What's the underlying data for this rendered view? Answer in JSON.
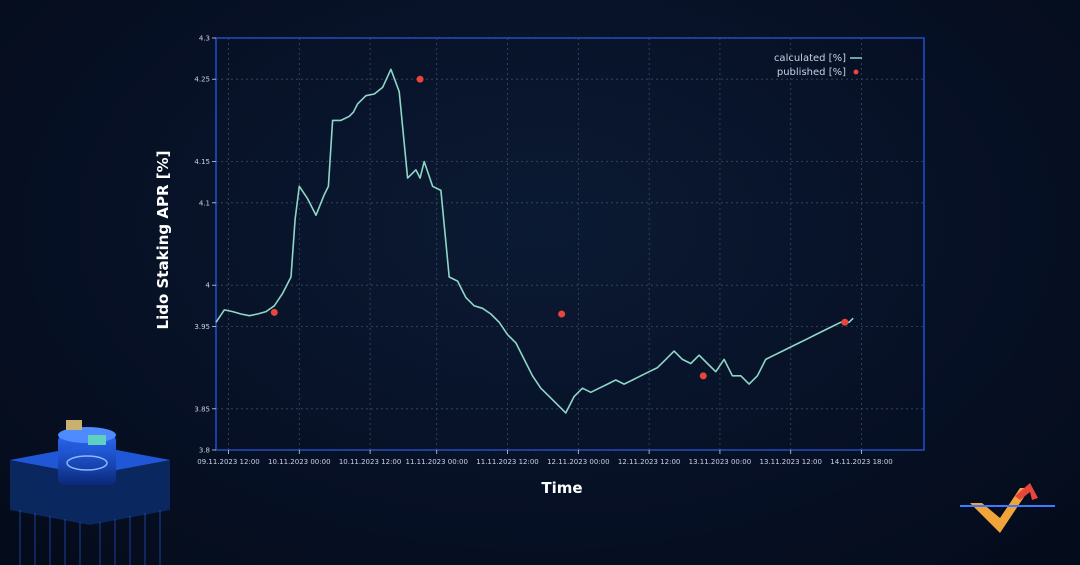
{
  "chart_data": {
    "type": "line",
    "ylabel": "Lido Staking APR [%]",
    "xlabel": "Time",
    "ylim": [
      3.8,
      4.3
    ],
    "xlim": [
      0,
      85
    ],
    "y_ticks": [
      "3.8",
      "3.85",
      "3.95",
      "4",
      "4.1",
      "4.15",
      "4.25",
      "4.3"
    ],
    "y_tick_values": [
      3.8,
      3.85,
      3.95,
      4.0,
      4.1,
      4.15,
      4.25,
      4.3
    ],
    "x_ticks": [
      "09.11.2023 12:00",
      "10.11.2023 00:00",
      "10.11.2023 12:00",
      "11.11.2023 00:00",
      "11.11.2023 12:00",
      "12.11.2023 00:00",
      "12.11.2023 12:00",
      "13.11.2023 00:00",
      "13.11.2023 12:00",
      "14.11.2023 18:00"
    ],
    "x_tick_values": [
      1.5,
      10,
      18.5,
      26.5,
      35,
      43.5,
      52,
      60.5,
      69,
      77.5
    ],
    "grid": true,
    "legend_position": "top-right",
    "series": [
      {
        "name": "calculated [%]",
        "kind": "line",
        "color": "#8fd6c9",
        "x": [
          0,
          1,
          2,
          3,
          4,
          5,
          6,
          7,
          8,
          9,
          9.5,
          10,
          11,
          12,
          13,
          13.5,
          14,
          15,
          16,
          16.5,
          17,
          18,
          19,
          20,
          21,
          22,
          23,
          24,
          24.5,
          25,
          26,
          27,
          28,
          29,
          30,
          31,
          32,
          33,
          34,
          35,
          36,
          37,
          38,
          39,
          40,
          41,
          42,
          43,
          44,
          45,
          46,
          47,
          48,
          49,
          50,
          51,
          52,
          53,
          54,
          55,
          56,
          57,
          58,
          59,
          60,
          61,
          62,
          63,
          64,
          65,
          66,
          67,
          68,
          69,
          70,
          71,
          72,
          73,
          74,
          75,
          76,
          76.5
        ],
        "y": [
          3.955,
          3.97,
          3.968,
          3.965,
          3.963,
          3.965,
          3.968,
          3.975,
          3.99,
          4.01,
          4.08,
          4.12,
          4.105,
          4.085,
          4.11,
          4.12,
          4.2,
          4.2,
          4.205,
          4.21,
          4.22,
          4.23,
          4.232,
          4.24,
          4.262,
          4.235,
          4.13,
          4.14,
          4.13,
          4.15,
          4.12,
          4.115,
          4.01,
          4.005,
          3.985,
          3.975,
          3.972,
          3.965,
          3.955,
          3.94,
          3.93,
          3.91,
          3.89,
          3.875,
          3.865,
          3.855,
          3.845,
          3.865,
          3.875,
          3.87,
          3.875,
          3.88,
          3.885,
          3.88,
          3.885,
          3.89,
          3.895,
          3.9,
          3.91,
          3.92,
          3.91,
          3.905,
          3.915,
          3.905,
          3.895,
          3.91,
          3.89,
          3.89,
          3.88,
          3.89,
          3.91,
          3.915,
          3.92,
          3.925,
          3.93,
          3.935,
          3.94,
          3.945,
          3.95,
          3.955,
          3.955,
          3.96
        ]
      },
      {
        "name": "published [%]",
        "kind": "scatter",
        "color": "#e8453c",
        "x": [
          7,
          24.5,
          41.5,
          58.5,
          75.5
        ],
        "y": [
          3.967,
          4.25,
          3.965,
          3.89,
          3.955
        ]
      }
    ]
  }
}
